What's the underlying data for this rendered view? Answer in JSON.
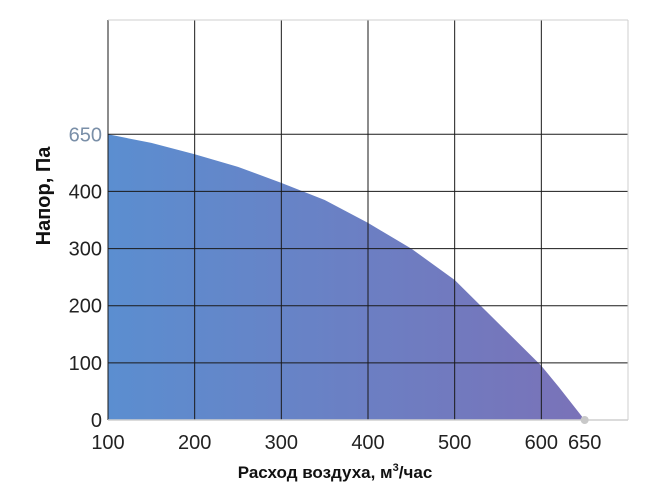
{
  "chart_data": {
    "type": "area",
    "ylabel": "Напор, Па",
    "xlabel_main": "Расход воздуха, м",
    "xlabel_sup": "3",
    "xlabel_tail": "/час",
    "x_ticks": [
      "100",
      "200",
      "300",
      "400",
      "500",
      "600",
      "650"
    ],
    "y_ticks": [
      "0",
      "100",
      "200",
      "300",
      "400",
      "650"
    ],
    "x_grid": [
      100,
      200,
      300,
      400,
      500,
      600
    ],
    "y_grid": [
      0,
      100,
      200,
      300,
      400,
      500
    ],
    "xlim": [
      100,
      700
    ],
    "ylim": [
      0,
      700
    ],
    "grid": true,
    "series": [
      {
        "x": [
          100,
          150,
          200,
          250,
          300,
          350,
          400,
          450,
          500,
          550,
          600,
          620,
          650
        ],
        "y": [
          500,
          485,
          465,
          443,
          415,
          385,
          345,
          300,
          245,
          170,
          95,
          58,
          0
        ]
      }
    ],
    "end_marker": {
      "x": 650,
      "y": 0
    },
    "colors": {
      "fill_start": "#5b8ed0",
      "fill_end": "#7a72b8",
      "grid": "#1a1a1a",
      "marker": "#c8c8c8"
    }
  }
}
